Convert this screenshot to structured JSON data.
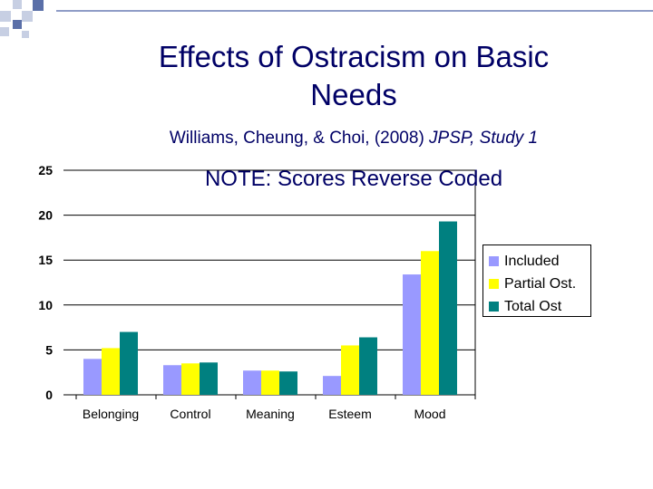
{
  "slide": {
    "title": "Effects of Ostracism on Basic Needs",
    "subtitle_plain": "Williams, Cheung, & Choi, (2008) ",
    "subtitle_italic": "JPSP, Study 1",
    "note": "NOTE: Scores Reverse Coded"
  },
  "colors": {
    "text": "#000066",
    "deco_dark": "#5a6fa8",
    "deco_light": "#c7cfe3",
    "grid": "#000000"
  },
  "chart_data": {
    "type": "bar",
    "title": "",
    "xlabel": "",
    "ylabel": "",
    "categories": [
      "Belonging",
      "Control",
      "Meaning",
      "Esteem",
      "Mood"
    ],
    "ylim": [
      0,
      25
    ],
    "yticks": [
      "0",
      "5",
      "10",
      "15",
      "20",
      "25"
    ],
    "grid": true,
    "legend_position": "right",
    "series": [
      {
        "name": "Included",
        "color": "#9999ff",
        "values": [
          4.0,
          3.3,
          2.7,
          2.1,
          13.4
        ]
      },
      {
        "name": "Partial Ost.",
        "color": "#ffff00",
        "values": [
          5.2,
          3.5,
          2.7,
          5.5,
          16.0
        ]
      },
      {
        "name": "Total Ost",
        "color": "#008080",
        "values": [
          7.0,
          3.6,
          2.6,
          6.4,
          19.3
        ]
      }
    ]
  }
}
